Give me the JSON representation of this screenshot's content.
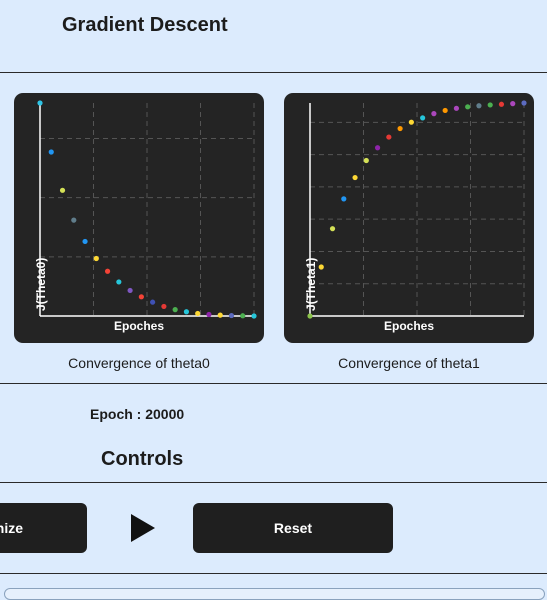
{
  "header": {
    "title": "Gradient Descent"
  },
  "charts": [
    {
      "ylabel": "J(Theta0)",
      "xlabel": "Epoches",
      "caption": "Convergence of theta0"
    },
    {
      "ylabel": "J(Theta1)",
      "xlabel": "Epoches",
      "caption": "Convergence of theta1"
    }
  ],
  "status": {
    "epoch_text": "Epoch : 20000"
  },
  "controls": {
    "heading": "Controls",
    "optimize_label": "nize",
    "reset_label": "Reset",
    "play_icon": "play-icon"
  },
  "chart_data": [
    {
      "type": "scatter",
      "title": "",
      "xlabel": "Epoches",
      "ylabel": "J(Theta0)",
      "points": [
        {
          "x": 0,
          "y": 1.0,
          "color": "#2ec4e6"
        },
        {
          "x": 1,
          "y": 0.77,
          "color": "#2196f3"
        },
        {
          "x": 2,
          "y": 0.59,
          "color": "#d4e157"
        },
        {
          "x": 3,
          "y": 0.45,
          "color": "#607d8b"
        },
        {
          "x": 4,
          "y": 0.35,
          "color": "#2196f3"
        },
        {
          "x": 5,
          "y": 0.27,
          "color": "#fdd835"
        },
        {
          "x": 6,
          "y": 0.21,
          "color": "#f44336"
        },
        {
          "x": 7,
          "y": 0.16,
          "color": "#26c6da"
        },
        {
          "x": 8,
          "y": 0.12,
          "color": "#7e57c2"
        },
        {
          "x": 9,
          "y": 0.09,
          "color": "#f44336"
        },
        {
          "x": 10,
          "y": 0.065,
          "color": "#3f51b5"
        },
        {
          "x": 11,
          "y": 0.045,
          "color": "#e53935"
        },
        {
          "x": 12,
          "y": 0.03,
          "color": "#4caf50"
        },
        {
          "x": 13,
          "y": 0.02,
          "color": "#26c6da"
        },
        {
          "x": 14,
          "y": 0.012,
          "color": "#fdd835"
        },
        {
          "x": 15,
          "y": 0.007,
          "color": "#8e24aa"
        },
        {
          "x": 16,
          "y": 0.004,
          "color": "#fdd835"
        },
        {
          "x": 17,
          "y": 0.002,
          "color": "#5c6bc0"
        },
        {
          "x": 18,
          "y": 0.001,
          "color": "#4caf50"
        },
        {
          "x": 19,
          "y": 0.0,
          "color": "#26c6da"
        }
      ],
      "xlim": [
        0,
        19
      ],
      "ylim": [
        0,
        1
      ],
      "grid": true
    },
    {
      "type": "scatter",
      "title": "",
      "xlabel": "Epoches",
      "ylabel": "J(Theta1)",
      "points": [
        {
          "x": 0,
          "y": 0.0,
          "color": "#8bc34a"
        },
        {
          "x": 1,
          "y": 0.23,
          "color": "#fdd835"
        },
        {
          "x": 2,
          "y": 0.41,
          "color": "#d4e157"
        },
        {
          "x": 3,
          "y": 0.55,
          "color": "#2196f3"
        },
        {
          "x": 4,
          "y": 0.65,
          "color": "#fdd835"
        },
        {
          "x": 5,
          "y": 0.73,
          "color": "#d4e157"
        },
        {
          "x": 6,
          "y": 0.79,
          "color": "#8e24aa"
        },
        {
          "x": 7,
          "y": 0.84,
          "color": "#e53935"
        },
        {
          "x": 8,
          "y": 0.88,
          "color": "#ff9800"
        },
        {
          "x": 9,
          "y": 0.91,
          "color": "#fdd835"
        },
        {
          "x": 10,
          "y": 0.93,
          "color": "#26c6da"
        },
        {
          "x": 11,
          "y": 0.95,
          "color": "#ab47bc"
        },
        {
          "x": 12,
          "y": 0.965,
          "color": "#ff9800"
        },
        {
          "x": 13,
          "y": 0.975,
          "color": "#ab47bc"
        },
        {
          "x": 14,
          "y": 0.982,
          "color": "#4caf50"
        },
        {
          "x": 15,
          "y": 0.987,
          "color": "#607d8b"
        },
        {
          "x": 16,
          "y": 0.991,
          "color": "#4caf50"
        },
        {
          "x": 17,
          "y": 0.994,
          "color": "#e53935"
        },
        {
          "x": 18,
          "y": 0.997,
          "color": "#ab47bc"
        },
        {
          "x": 19,
          "y": 1.0,
          "color": "#5c6bc0"
        }
      ],
      "xlim": [
        0,
        19
      ],
      "ylim": [
        0,
        1
      ],
      "grid": true
    }
  ]
}
